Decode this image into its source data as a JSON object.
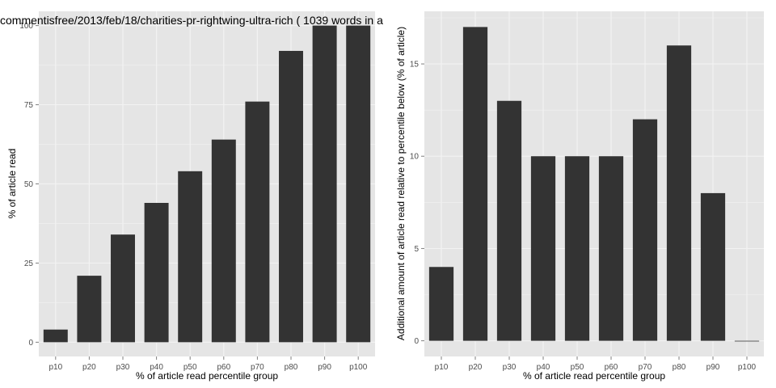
{
  "chart_data": [
    {
      "type": "bar",
      "title": "commentisfree/2013/feb/18/charities-pr-rightwing-ultra-rich ( 1039 words in a",
      "xlabel": "% of article read percentile group",
      "ylabel": "% of article read",
      "categories": [
        "p10",
        "p20",
        "p30",
        "p40",
        "p50",
        "p60",
        "p70",
        "p80",
        "p90",
        "p100"
      ],
      "values": [
        4,
        21,
        34,
        44,
        54,
        64,
        76,
        92,
        100,
        100
      ],
      "ylim": [
        -4.5,
        104.5
      ],
      "yticks": [
        0,
        25,
        50,
        75,
        100
      ],
      "ytick_labels": [
        "0",
        "25",
        "50",
        "75",
        "100"
      ],
      "grid": true,
      "panel_color": "#e5e5e5",
      "grid_color": "#f2f2f2",
      "bar_color": "#333333"
    },
    {
      "type": "bar",
      "title": "",
      "xlabel": "% of article read percentile group",
      "ylabel": "Additional amount of article read relative to percentile below (% of article)",
      "categories": [
        "p10",
        "p20",
        "p30",
        "p40",
        "p50",
        "p60",
        "p70",
        "p80",
        "p90",
        "p100"
      ],
      "values": [
        4,
        17,
        13,
        10,
        10,
        10,
        12,
        16,
        8,
        0
      ],
      "ylim": [
        -0.85,
        17.85
      ],
      "yticks": [
        0,
        5,
        10,
        15
      ],
      "ytick_labels": [
        "0",
        "5",
        "10",
        "15"
      ],
      "grid": true,
      "panel_color": "#e5e5e5",
      "grid_color": "#f2f2f2",
      "bar_color": "#333333"
    }
  ]
}
